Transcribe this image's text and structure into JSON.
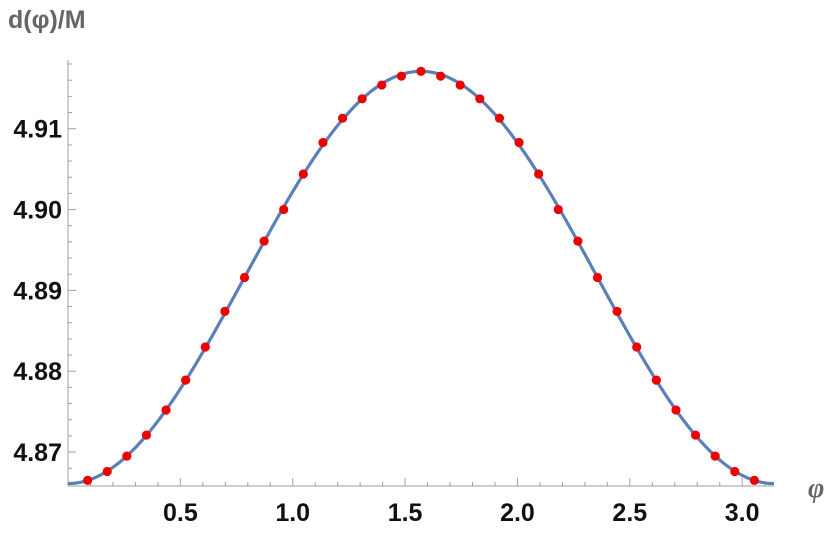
{
  "chart_data": {
    "type": "line",
    "ylabel": "d(φ)/M",
    "xlabel": "φ",
    "xlim": [
      0,
      3.1416
    ],
    "ylim": [
      4.8658,
      4.9185
    ],
    "x_ticks": [
      0.5,
      1.0,
      1.5,
      2.0,
      2.5,
      3.0
    ],
    "x_tick_labels": [
      "0.5",
      "1.0",
      "1.5",
      "2.0",
      "2.5",
      "3.0"
    ],
    "y_ticks": [
      4.87,
      4.88,
      4.89,
      4.9,
      4.91
    ],
    "y_tick_labels": [
      "4.87",
      "4.88",
      "4.89",
      "4.90",
      "4.91"
    ],
    "grid": false,
    "legend": "none",
    "curve": {
      "model": "4.8661 + 0.0510 * sin(x)^2",
      "color": "#5b7fb7"
    },
    "points": {
      "color": "#ee0000",
      "x": [
        0.0873,
        0.1745,
        0.2618,
        0.3491,
        0.4363,
        0.5236,
        0.6109,
        0.6981,
        0.7854,
        0.8727,
        0.9599,
        1.0472,
        1.1345,
        1.2217,
        1.309,
        1.3963,
        1.4835,
        1.5708,
        1.6581,
        1.7453,
        1.8326,
        1.9199,
        2.0071,
        2.0944,
        2.1817,
        2.2689,
        2.3562,
        2.4435,
        2.5307,
        2.618,
        2.7053,
        2.7925,
        2.8798,
        2.9671,
        3.0543
      ],
      "y": [
        4.8665,
        4.8676,
        4.8695,
        4.8721,
        4.8752,
        4.8789,
        4.883,
        4.8874,
        4.8916,
        4.8961,
        4.9,
        4.9044,
        4.9083,
        4.9113,
        4.9137,
        4.9154,
        4.9165,
        4.9171,
        4.9165,
        4.9154,
        4.9137,
        4.9113,
        4.9083,
        4.9044,
        4.9,
        4.8961,
        4.8916,
        4.8874,
        4.883,
        4.8789,
        4.8752,
        4.8721,
        4.8695,
        4.8676,
        4.8665
      ]
    }
  }
}
